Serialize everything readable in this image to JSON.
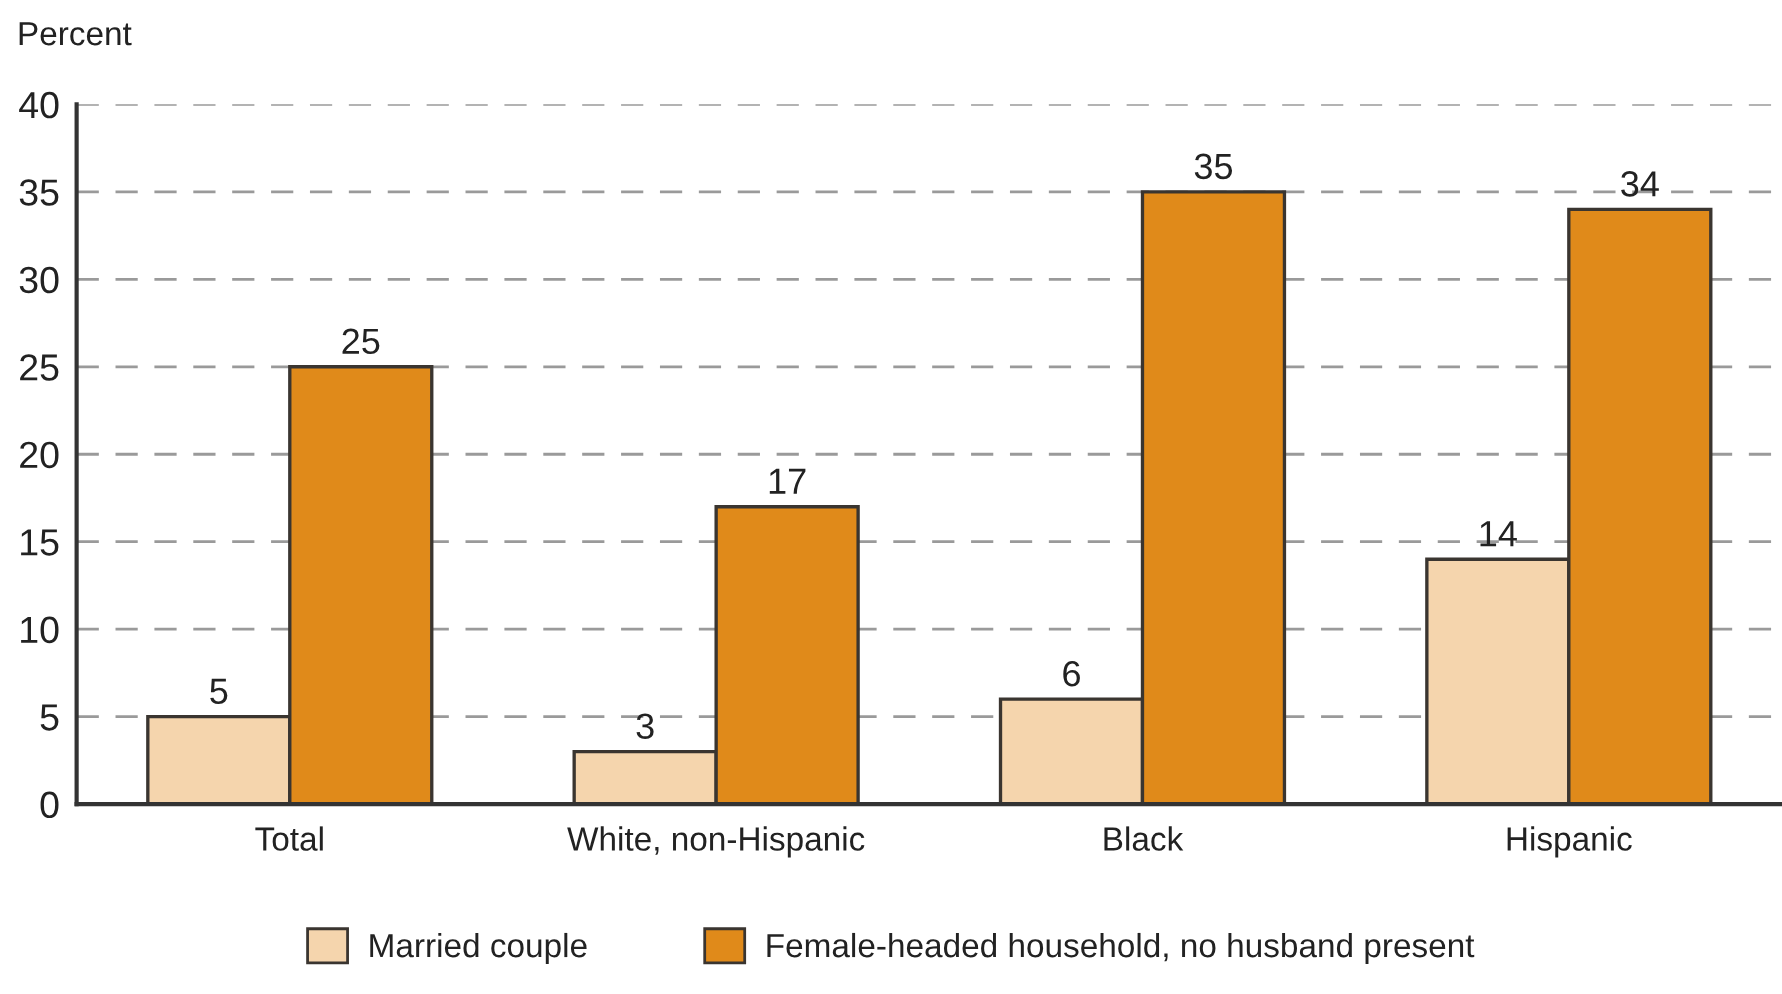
{
  "chart_data": {
    "type": "bar",
    "ylabel": "Percent",
    "categories": [
      "Total",
      "White, non-Hispanic",
      "Black",
      "Hispanic"
    ],
    "series": [
      {
        "name": "Married couple",
        "color": "#f5d5ad",
        "values": [
          5,
          3,
          6,
          14
        ]
      },
      {
        "name": "Female-headed household, no husband present",
        "color": "#e08a1a",
        "values": [
          25,
          17,
          35,
          34
        ]
      }
    ],
    "ylim": [
      0,
      40
    ],
    "yticks": [
      0,
      5,
      10,
      15,
      20,
      25,
      30,
      35,
      40
    ],
    "grid": "y",
    "legend": "bottom",
    "data_labels": true
  }
}
